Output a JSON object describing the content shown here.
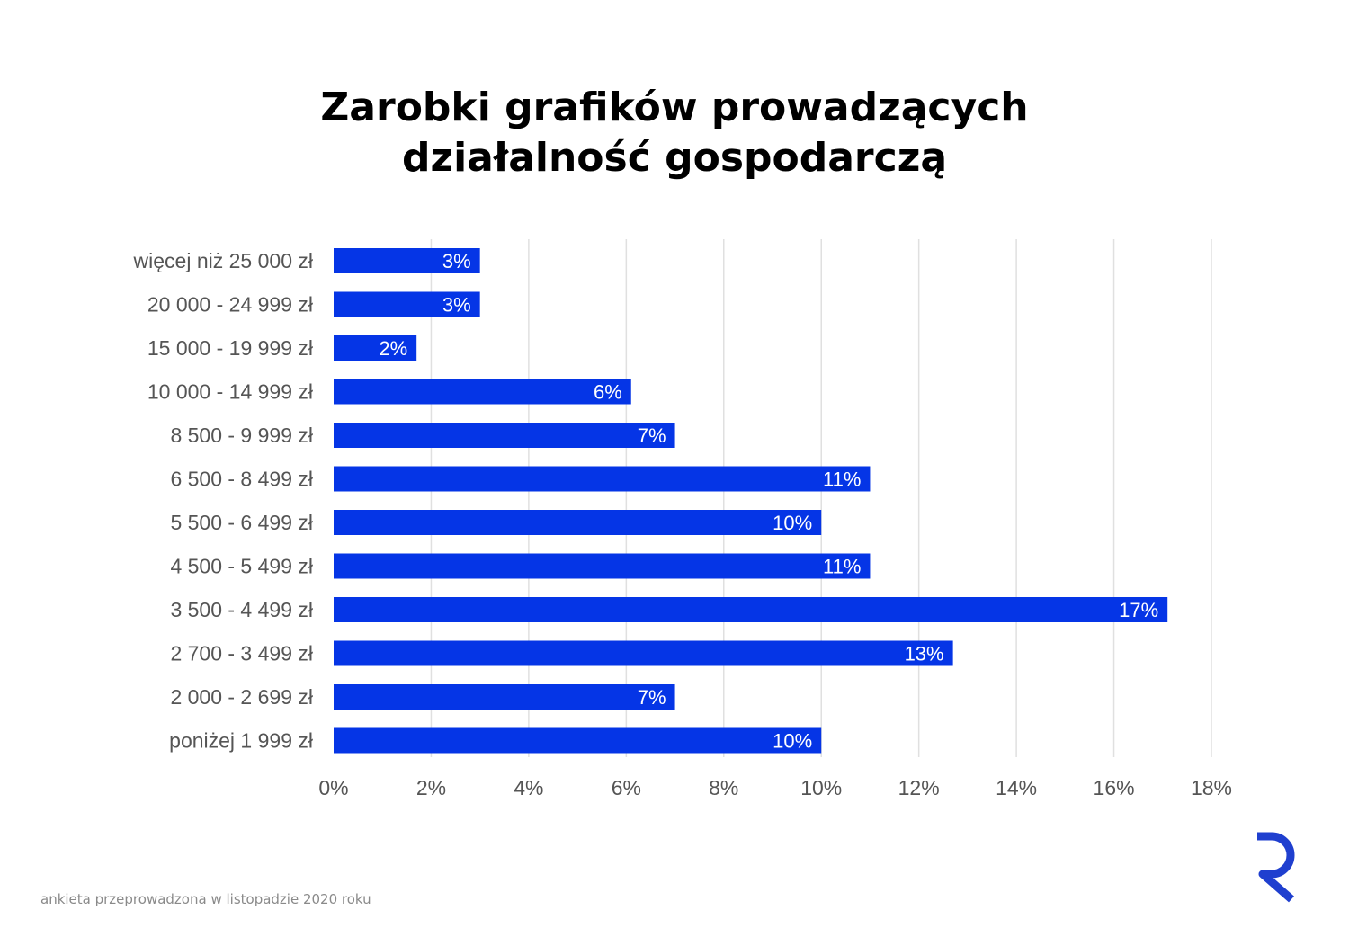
{
  "chart_data": {
    "type": "bar",
    "orientation": "horizontal",
    "title_lines": [
      "Zarobki grafików prowadzących",
      "działalność gospodarczą"
    ],
    "categories": [
      "więcej niż 25 000 zł",
      "20 000 - 24 999 zł",
      "15 000 - 19 999 zł",
      "10 000 - 14 999 zł",
      "8 500 - 9 999 zł",
      "6 500 - 8 499 zł",
      "5 500 - 6 499 zł",
      "4 500 - 5 499 zł",
      "3 500 - 4 499 zł",
      "2 700 - 3 499 zł",
      "2 000 - 2 699 zł",
      "poniżej 1 999 zł"
    ],
    "values": [
      3.0,
      3.0,
      1.7,
      6.1,
      7.0,
      11.0,
      10.0,
      11.0,
      17.1,
      12.7,
      7.0,
      10.0
    ],
    "data_labels": [
      "3%",
      "3%",
      "2%",
      "6%",
      "7%",
      "11%",
      "10%",
      "11%",
      "17%",
      "13%",
      "7%",
      "10%"
    ],
    "xlim": [
      0,
      18
    ],
    "xticks": [
      "0%",
      "2%",
      "4%",
      "6%",
      "8%",
      "10%",
      "12%",
      "14%",
      "16%",
      "18%"
    ],
    "grid": true,
    "bar_color": "#0535e6",
    "label_color": "#555555",
    "grid_color": "#e0e0e0"
  },
  "footnote": "ankieta przeprowadzona w listopadzie 2020 roku",
  "logo": {
    "icon": "r-logo-icon",
    "color": "#1f3fcf"
  }
}
